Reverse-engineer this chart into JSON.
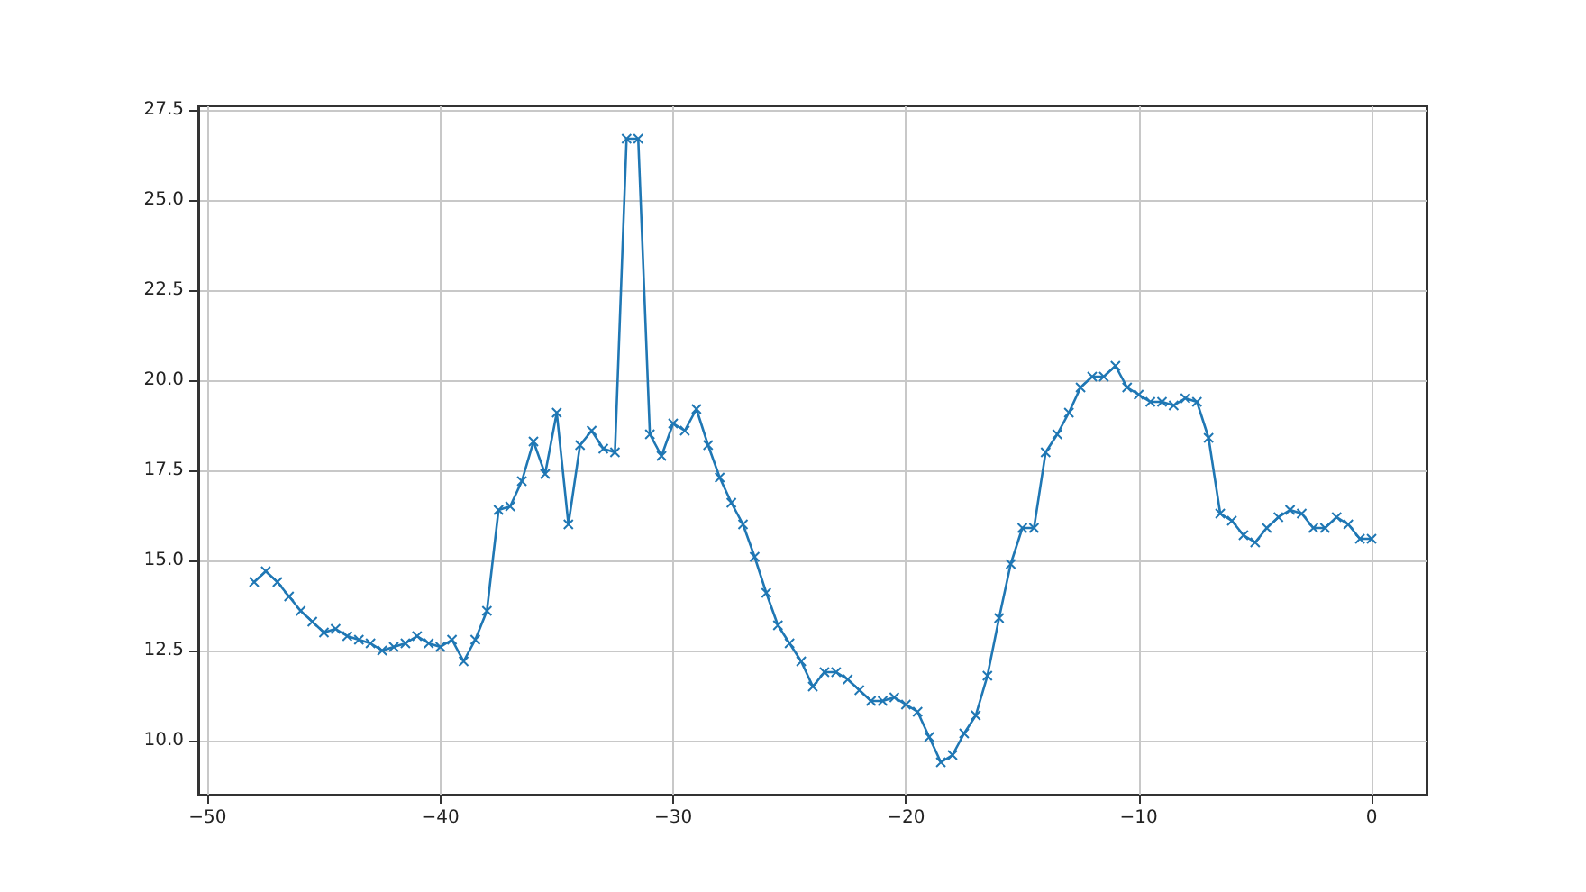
{
  "chart_data": {
    "type": "line",
    "x": [
      -48,
      -47.5,
      -47,
      -46.5,
      -46,
      -45.5,
      -45,
      -44.5,
      -44,
      -43.5,
      -43,
      -42.5,
      -42,
      -41.5,
      -41,
      -40.5,
      -40,
      -39.5,
      -39,
      -38.5,
      -38,
      -37.5,
      -37,
      -36.5,
      -36,
      -35.5,
      -35,
      -34.5,
      -34,
      -33.5,
      -33,
      -32.5,
      -32,
      -31.5,
      -31,
      -30.5,
      -30,
      -29.5,
      -29,
      -28.5,
      -28,
      -27.5,
      -27,
      -26.5,
      -26,
      -25.5,
      -25,
      -24.5,
      -24,
      -23.5,
      -23,
      -22.5,
      -22,
      -21.5,
      -21,
      -20.5,
      -20,
      -19.5,
      -19,
      -18.5,
      -18,
      -17.5,
      -17,
      -16.5,
      -16,
      -15.5,
      -15,
      -14.5,
      -14,
      -13.5,
      -13,
      -12.5,
      -12,
      -11.5,
      -11,
      -10.5,
      -10,
      -9.5,
      -9,
      -8.5,
      -8,
      -7.5,
      -7,
      -6.5,
      -6,
      -5.5,
      -5,
      -4.5,
      -4,
      -3.5,
      -3,
      -2.5,
      -2,
      -1.5,
      -1,
      -0.5,
      0
    ],
    "series": [
      {
        "color": "#1f77b4",
        "values": [
          14.4,
          14.7,
          14.4,
          14.0,
          13.6,
          13.3,
          13.0,
          13.1,
          12.9,
          12.8,
          12.7,
          12.5,
          12.6,
          12.7,
          12.9,
          12.7,
          12.6,
          12.8,
          12.2,
          12.8,
          13.6,
          16.4,
          16.5,
          17.2,
          18.3,
          17.4,
          19.1,
          16.0,
          18.2,
          18.6,
          18.1,
          18.0,
          26.7,
          26.7,
          18.5,
          17.9,
          18.8,
          18.6,
          19.2,
          18.2,
          17.3,
          16.6,
          16.0,
          15.1,
          14.1,
          13.2,
          12.7,
          12.2,
          11.5,
          11.9,
          11.9,
          11.7,
          11.4,
          11.1,
          11.1,
          11.2,
          11.0,
          10.8,
          10.1,
          9.4,
          9.6,
          10.2,
          10.7,
          11.8,
          13.4,
          14.9,
          15.9,
          15.9,
          18.0,
          18.5,
          19.1,
          19.8,
          20.1,
          20.1,
          20.4,
          19.8,
          19.6,
          19.4,
          19.4,
          19.3,
          19.5,
          19.4,
          18.4,
          16.3,
          16.1,
          15.7,
          15.5,
          15.9,
          16.2,
          16.4,
          16.3,
          15.9,
          15.9,
          16.2,
          16.0,
          15.6,
          15.6
        ]
      }
    ],
    "xlim": [
      -50.4,
      2.4
    ],
    "ylim": [
      8.5,
      27.6
    ],
    "xticks": [
      {
        "value": -50,
        "label": "−50"
      },
      {
        "value": -40,
        "label": "−40"
      },
      {
        "value": -30,
        "label": "−30"
      },
      {
        "value": -20,
        "label": "−20"
      },
      {
        "value": -10,
        "label": "−10"
      },
      0
    ],
    "yticks": [
      {
        "value": 10,
        "label": "10.0"
      },
      {
        "value": 12.5,
        "label": "12.5"
      },
      {
        "value": 15,
        "label": "15.0"
      },
      {
        "value": 17.5,
        "label": "17.5"
      },
      {
        "value": 20,
        "label": "20.0"
      },
      {
        "value": 22.5,
        "label": "22.5"
      },
      {
        "value": 25,
        "label": "25.0"
      },
      {
        "value": 27.5,
        "label": "27.5"
      }
    ],
    "grid": true,
    "marker": "cross",
    "line_style": "solid"
  }
}
